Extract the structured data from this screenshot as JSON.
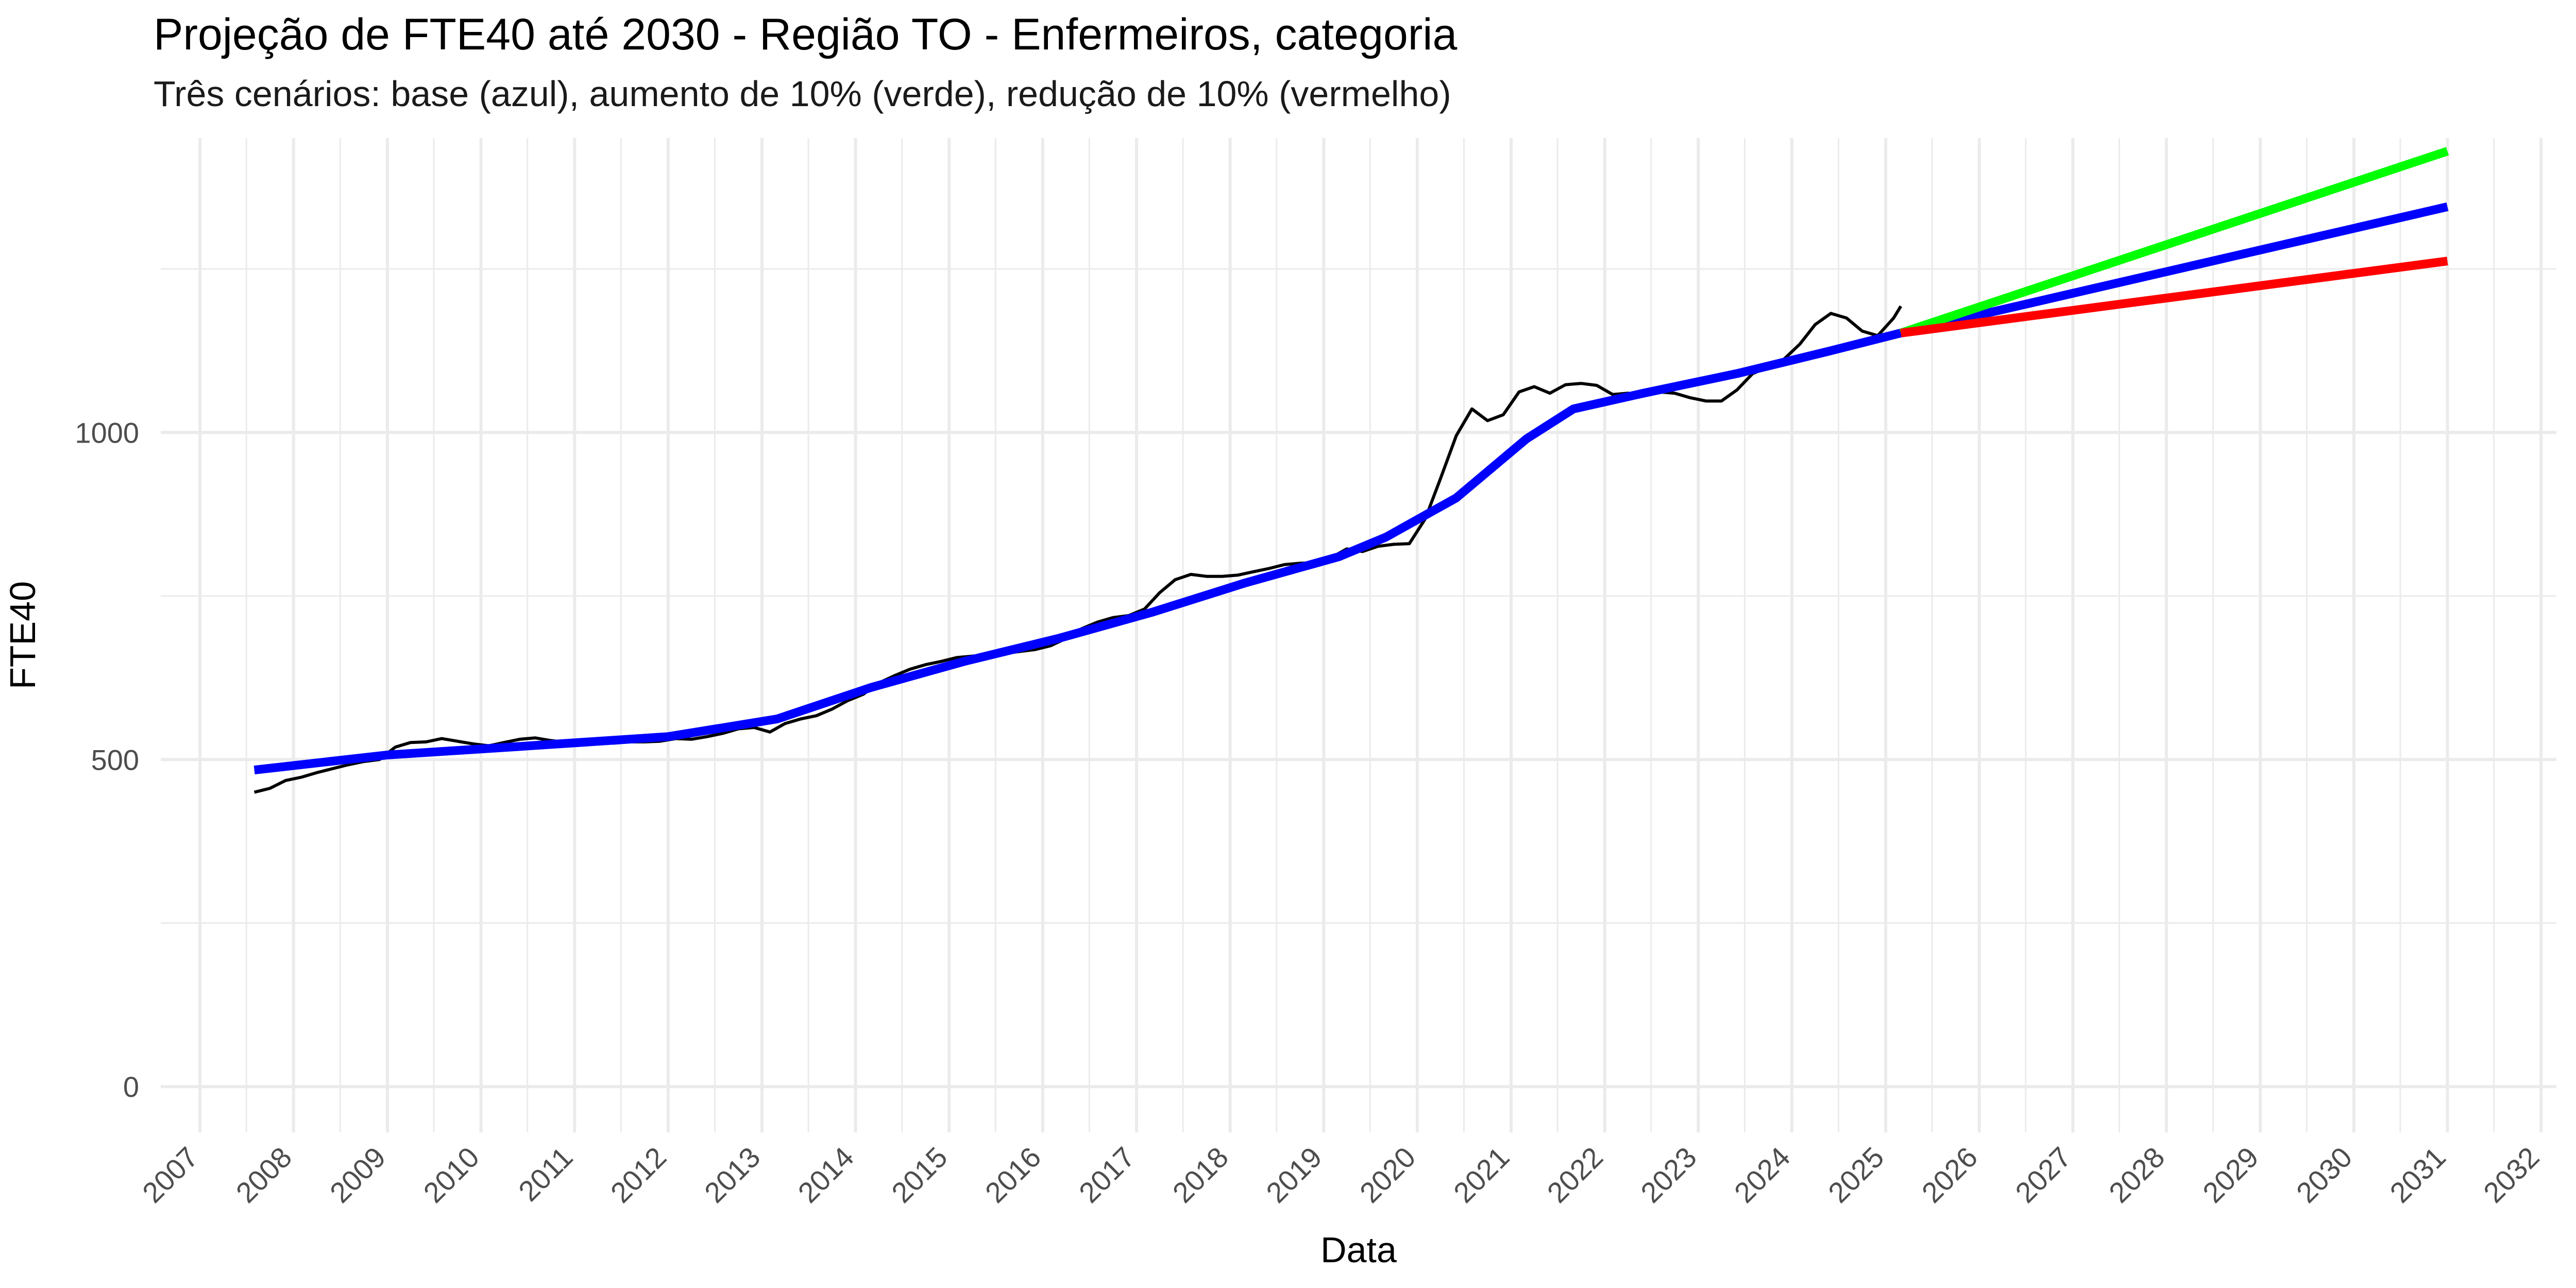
{
  "chart_data": {
    "type": "line",
    "title": "Projeção de FTE40 até 2030 - Região TO - Enfermeiros, categoria",
    "subtitle": "Três cenários: base (azul), aumento de 10% (verde), redução de 10% (vermelho)",
    "xlabel": "Data",
    "ylabel": "FTE40",
    "x_ticks": [
      "2007",
      "2008",
      "2009",
      "2010",
      "2011",
      "2012",
      "2013",
      "2014",
      "2015",
      "2016",
      "2017",
      "2018",
      "2019",
      "2020",
      "2021",
      "2022",
      "2023",
      "2024",
      "2025",
      "2026",
      "2027",
      "2028",
      "2029",
      "2030",
      "2031",
      "2032"
    ],
    "y_ticks": [
      0,
      500,
      1000
    ],
    "ylim": [
      -70,
      1450
    ],
    "xlim": [
      "2006-08-01",
      "2032-03-01"
    ],
    "grid": true,
    "colors": {
      "observed": "#000000",
      "base": "#0000FF",
      "up": "#00FF00",
      "down": "#FF0000"
    },
    "series": [
      {
        "color": "observed",
        "points": [
          [
            "2007-08-01",
            450
          ],
          [
            "2007-10-01",
            456
          ],
          [
            "2007-12-01",
            468
          ],
          [
            "2008-02-01",
            473
          ],
          [
            "2008-04-01",
            480
          ],
          [
            "2008-06-01",
            486
          ],
          [
            "2008-08-01",
            492
          ],
          [
            "2008-10-01",
            497
          ],
          [
            "2008-12-01",
            500
          ],
          [
            "2009-02-01",
            519
          ],
          [
            "2009-04-01",
            526
          ],
          [
            "2009-06-01",
            527
          ],
          [
            "2009-08-01",
            532
          ],
          [
            "2009-10-01",
            528
          ],
          [
            "2009-12-01",
            524
          ],
          [
            "2010-02-01",
            521
          ],
          [
            "2010-04-01",
            526
          ],
          [
            "2010-06-01",
            531
          ],
          [
            "2010-08-01",
            533
          ],
          [
            "2010-10-01",
            529
          ],
          [
            "2010-12-01",
            526
          ],
          [
            "2011-02-01",
            527
          ],
          [
            "2011-04-01",
            526
          ],
          [
            "2011-06-01",
            525
          ],
          [
            "2011-08-01",
            527
          ],
          [
            "2011-10-01",
            527
          ],
          [
            "2011-12-01",
            528
          ],
          [
            "2012-02-01",
            532
          ],
          [
            "2012-04-01",
            531
          ],
          [
            "2012-06-01",
            535
          ],
          [
            "2012-08-01",
            540
          ],
          [
            "2012-10-01",
            547
          ],
          [
            "2012-12-01",
            549
          ],
          [
            "2013-02-01",
            542
          ],
          [
            "2013-04-01",
            555
          ],
          [
            "2013-06-01",
            562
          ],
          [
            "2013-08-01",
            567
          ],
          [
            "2013-10-01",
            577
          ],
          [
            "2013-12-01",
            590
          ],
          [
            "2014-02-01",
            600
          ],
          [
            "2014-04-01",
            617
          ],
          [
            "2014-06-01",
            628
          ],
          [
            "2014-08-01",
            638
          ],
          [
            "2014-10-01",
            645
          ],
          [
            "2014-12-01",
            650
          ],
          [
            "2015-02-01",
            656
          ],
          [
            "2015-04-01",
            658
          ],
          [
            "2015-06-01",
            660
          ],
          [
            "2015-08-01",
            662
          ],
          [
            "2015-10-01",
            665
          ],
          [
            "2015-12-01",
            668
          ],
          [
            "2016-02-01",
            674
          ],
          [
            "2016-04-01",
            685
          ],
          [
            "2016-06-01",
            700
          ],
          [
            "2016-08-01",
            710
          ],
          [
            "2016-10-01",
            717
          ],
          [
            "2016-12-01",
            720
          ],
          [
            "2017-02-01",
            730
          ],
          [
            "2017-04-01",
            755
          ],
          [
            "2017-06-01",
            775
          ],
          [
            "2017-08-01",
            783
          ],
          [
            "2017-10-01",
            780
          ],
          [
            "2017-12-01",
            780
          ],
          [
            "2018-02-01",
            782
          ],
          [
            "2018-04-01",
            787
          ],
          [
            "2018-06-01",
            792
          ],
          [
            "2018-08-01",
            798
          ],
          [
            "2018-10-01",
            800
          ],
          [
            "2018-12-01",
            801
          ],
          [
            "2019-02-01",
            809
          ],
          [
            "2019-04-01",
            822
          ],
          [
            "2019-06-01",
            818
          ],
          [
            "2019-08-01",
            826
          ],
          [
            "2019-10-01",
            829
          ],
          [
            "2019-12-01",
            830
          ],
          [
            "2020-02-01",
            868
          ],
          [
            "2020-04-01",
            930
          ],
          [
            "2020-06-01",
            995
          ],
          [
            "2020-08-01",
            1036
          ],
          [
            "2020-10-01",
            1018
          ],
          [
            "2020-12-01",
            1027
          ],
          [
            "2021-02-01",
            1062
          ],
          [
            "2021-04-01",
            1070
          ],
          [
            "2021-06-01",
            1060
          ],
          [
            "2021-08-01",
            1073
          ],
          [
            "2021-10-01",
            1075
          ],
          [
            "2021-12-01",
            1072
          ],
          [
            "2022-02-01",
            1058
          ],
          [
            "2022-04-01",
            1060
          ],
          [
            "2022-06-01",
            1058
          ],
          [
            "2022-08-01",
            1062
          ],
          [
            "2022-10-01",
            1060
          ],
          [
            "2022-12-01",
            1053
          ],
          [
            "2023-02-01",
            1048
          ],
          [
            "2023-04-01",
            1048
          ],
          [
            "2023-06-01",
            1065
          ],
          [
            "2023-08-01",
            1090
          ],
          [
            "2023-10-01",
            1100
          ],
          [
            "2023-12-01",
            1112
          ],
          [
            "2024-02-01",
            1135
          ],
          [
            "2024-04-01",
            1165
          ],
          [
            "2024-06-01",
            1182
          ],
          [
            "2024-08-01",
            1175
          ],
          [
            "2024-10-01",
            1155
          ],
          [
            "2024-12-01",
            1148
          ],
          [
            "2025-02-01",
            1175
          ],
          [
            "2025-03-01",
            1193
          ]
        ]
      },
      {
        "color": "base",
        "points": [
          [
            "2007-08-01",
            484
          ],
          [
            "2009-01-01",
            507
          ],
          [
            "2010-06-01",
            520
          ],
          [
            "2012-01-01",
            535
          ],
          [
            "2013-03-01",
            562
          ],
          [
            "2014-03-01",
            610
          ],
          [
            "2015-03-01",
            650
          ],
          [
            "2016-03-01",
            685
          ],
          [
            "2017-03-01",
            725
          ],
          [
            "2018-03-01",
            770
          ],
          [
            "2019-03-01",
            810
          ],
          [
            "2019-09-01",
            840
          ],
          [
            "2020-06-01",
            900
          ],
          [
            "2021-03-01",
            990
          ],
          [
            "2021-09-01",
            1036
          ],
          [
            "2022-06-01",
            1060
          ],
          [
            "2023-06-01",
            1090
          ],
          [
            "2024-06-01",
            1125
          ],
          [
            "2025-03-01",
            1152
          ],
          [
            "2031-01-01",
            1345
          ]
        ]
      },
      {
        "color": "up",
        "points": [
          [
            "2025-03-01",
            1152
          ],
          [
            "2031-01-01",
            1430
          ]
        ]
      },
      {
        "color": "down",
        "points": [
          [
            "2025-03-01",
            1152
          ],
          [
            "2031-01-01",
            1262
          ]
        ]
      }
    ]
  }
}
